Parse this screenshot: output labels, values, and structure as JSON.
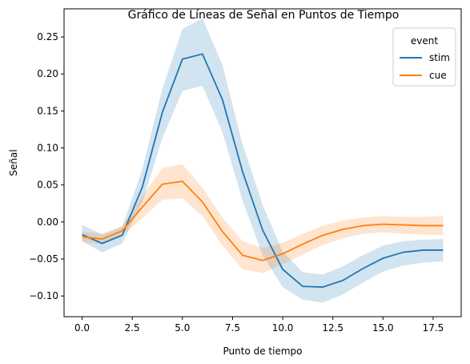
{
  "chart_data": {
    "type": "line",
    "title": "Gráfico de Líneas de Señal en Puntos de Tiempo",
    "xlabel": "Punto de tiempo",
    "ylabel": "Señal",
    "xlim": [
      -0.9,
      18.9
    ],
    "ylim": [
      -0.128,
      0.288
    ],
    "xticks": [
      0.0,
      2.5,
      5.0,
      7.5,
      10.0,
      12.5,
      15.0,
      17.5
    ],
    "xtick_labels": [
      "0.0",
      "2.5",
      "5.0",
      "7.5",
      "10.0",
      "12.5",
      "15.0",
      "17.5"
    ],
    "yticks": [
      -0.1,
      -0.05,
      0.0,
      0.05,
      0.1,
      0.15,
      0.2,
      0.25
    ],
    "ytick_labels": [
      "−0.10",
      "−0.05",
      "0.00",
      "0.05",
      "0.10",
      "0.15",
      "0.20",
      "0.25"
    ],
    "grid": false,
    "legend": {
      "title": "event",
      "placement": "top-right"
    },
    "x": [
      0,
      1,
      2,
      3,
      4,
      5,
      6,
      7,
      8,
      9,
      10,
      11,
      12,
      13,
      14,
      15,
      16,
      17,
      18
    ],
    "series": [
      {
        "name": "stim",
        "color": "#1f77b4",
        "values": [
          -0.017,
          -0.029,
          -0.018,
          0.047,
          0.148,
          0.22,
          0.227,
          0.165,
          0.068,
          -0.011,
          -0.064,
          -0.087,
          -0.088,
          -0.079,
          -0.063,
          -0.049,
          -0.041,
          -0.038,
          -0.038
        ],
        "lower": [
          -0.026,
          -0.041,
          -0.029,
          0.026,
          0.113,
          0.177,
          0.184,
          0.121,
          0.029,
          -0.045,
          -0.088,
          -0.105,
          -0.109,
          -0.098,
          -0.082,
          -0.067,
          -0.059,
          -0.055,
          -0.053
        ],
        "upper": [
          -0.004,
          -0.017,
          -0.007,
          0.071,
          0.18,
          0.261,
          0.275,
          0.212,
          0.105,
          0.023,
          -0.04,
          -0.068,
          -0.071,
          -0.06,
          -0.045,
          -0.032,
          -0.026,
          -0.024,
          -0.023
        ]
      },
      {
        "name": "cue",
        "color": "#ff7f0e",
        "values": [
          -0.02,
          -0.023,
          -0.012,
          0.02,
          0.051,
          0.055,
          0.027,
          -0.013,
          -0.045,
          -0.052,
          -0.043,
          -0.03,
          -0.018,
          -0.01,
          -0.005,
          -0.003,
          -0.004,
          -0.005,
          -0.005
        ],
        "lower": [
          -0.027,
          -0.03,
          -0.019,
          0.005,
          0.03,
          0.032,
          0.008,
          -0.032,
          -0.064,
          -0.069,
          -0.057,
          -0.044,
          -0.031,
          -0.022,
          -0.016,
          -0.014,
          -0.016,
          -0.017,
          -0.018
        ],
        "upper": [
          -0.013,
          -0.016,
          -0.005,
          0.035,
          0.073,
          0.078,
          0.046,
          0.006,
          -0.026,
          -0.035,
          -0.028,
          -0.016,
          -0.005,
          0.002,
          0.006,
          0.008,
          0.007,
          0.007,
          0.008
        ]
      }
    ]
  }
}
